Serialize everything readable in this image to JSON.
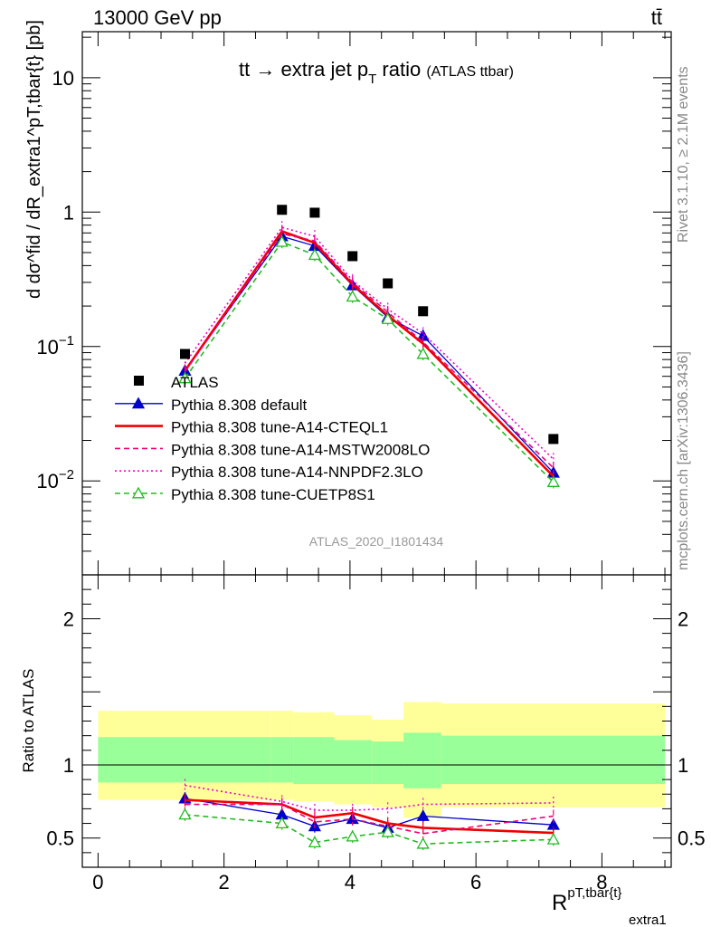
{
  "header": {
    "energy": "13000 GeV pp",
    "process": "tt̄"
  },
  "side_labels": {
    "rivet": "Rivet 3.1.10, ≥ 2.1M events",
    "mcplots": "mcplots.cern.ch [arXiv:1306.3436]"
  },
  "analysis_id": "ATLAS_2020_I1801434",
  "chart_data": [
    {
      "type": "line",
      "panel": "main",
      "title": "tt → extra jet pT ratio",
      "title_suffix": "(ATLAS ttbar)",
      "ylabel": "d dσ^fid / dR_extra1^pT,tbar{t} [pb]",
      "y_scale": "log",
      "ylim": [
        0.002,
        22
      ],
      "xlim": [
        -0.25,
        9.1
      ],
      "y_tick_labels": [
        "10",
        "1",
        "10−1",
        "10−2"
      ],
      "legend_position": "lower-left",
      "x": [
        1.38,
        2.92,
        3.44,
        4.04,
        4.6,
        5.16,
        7.23
      ],
      "series": [
        {
          "name": "ATLAS",
          "style": "data",
          "color": "#000000",
          "values": [
            0.088,
            1.04,
            0.99,
            0.47,
            0.295,
            0.183,
            0.0205
          ]
        },
        {
          "name": "Pythia 8.308 default",
          "style": "solid-thin-filled-triangle",
          "color": "#0000cc",
          "values": [
            0.066,
            0.66,
            0.56,
            0.285,
            0.165,
            0.12,
            0.0115
          ]
        },
        {
          "name": "Pythia 8.308 tune-A14-CTEQL1",
          "style": "solid-thick",
          "color": "#ee0000",
          "values": [
            0.066,
            0.72,
            0.59,
            0.29,
            0.17,
            0.105,
            0.0108
          ]
        },
        {
          "name": "Pythia 8.308 tune-A14-MSTW2008LO",
          "style": "dashed",
          "color": "#ee0077",
          "values": [
            0.065,
            0.69,
            0.61,
            0.3,
            0.18,
            0.108,
            0.0125
          ]
        },
        {
          "name": "Pythia 8.308 tune-A14-NNPDF2.3LO",
          "style": "dotted",
          "color": "#ee00cc",
          "values": [
            0.075,
            0.77,
            0.66,
            0.31,
            0.19,
            0.125,
            0.0145
          ]
        },
        {
          "name": "Pythia 8.308 tune-CUETP8S1",
          "style": "dashed-open-triangle",
          "color": "#22bb22",
          "values": [
            0.058,
            0.6,
            0.48,
            0.235,
            0.16,
            0.088,
            0.0098
          ]
        }
      ]
    },
    {
      "type": "line",
      "panel": "ratio",
      "ylabel": "Ratio to ATLAS",
      "y_scale": "linear",
      "ylim": [
        0.3,
        2.3
      ],
      "xlim": [
        -0.25,
        9.1
      ],
      "y_tick_labels": [
        "2",
        "1",
        "0.5"
      ],
      "x_tick_labels": [
        "0",
        "2",
        "4",
        "6",
        "8"
      ],
      "xlabel": "R^pT,tbar{t}_extra1",
      "bands": {
        "bin_edges": [
          0.0,
          2.75,
          3.1,
          3.75,
          4.35,
          4.85,
          5.45,
          9.0
        ],
        "green": [
          [
            0.88,
            1.19
          ],
          [
            0.88,
            1.19
          ],
          [
            0.87,
            1.19
          ],
          [
            0.87,
            1.17
          ],
          [
            0.87,
            1.16
          ],
          [
            0.84,
            1.22
          ],
          [
            0.87,
            1.2
          ]
        ],
        "yellow": [
          [
            0.76,
            1.37
          ],
          [
            0.76,
            1.37
          ],
          [
            0.75,
            1.36
          ],
          [
            0.73,
            1.34
          ],
          [
            0.71,
            1.31
          ],
          [
            0.64,
            1.43
          ],
          [
            0.71,
            1.42
          ]
        ]
      },
      "x": [
        1.38,
        2.92,
        3.44,
        4.04,
        4.6,
        5.16,
        7.23
      ],
      "series": [
        {
          "name": "Pythia 8.308 default",
          "style": "solid-thin-filled-triangle",
          "color": "#0000cc",
          "values": [
            0.77,
            0.66,
            0.58,
            0.63,
            0.57,
            0.65,
            0.59
          ]
        },
        {
          "name": "Pythia 8.308 tune-A14-CTEQL1",
          "style": "solid-thick",
          "color": "#ee0000",
          "values": [
            0.76,
            0.73,
            0.64,
            0.67,
            0.6,
            0.57,
            0.535
          ]
        },
        {
          "name": "Pythia 8.308 tune-A14-MSTW2008LO",
          "style": "dashed",
          "color": "#ee0077",
          "values": [
            0.73,
            0.73,
            0.61,
            0.63,
            0.58,
            0.53,
            0.65
          ]
        },
        {
          "name": "Pythia 8.308 tune-A14-NNPDF2.3LO",
          "style": "dotted",
          "color": "#ee00cc",
          "values": [
            0.86,
            0.75,
            0.69,
            0.69,
            0.7,
            0.73,
            0.74
          ]
        },
        {
          "name": "Pythia 8.308 tune-CUETP8S1",
          "style": "dashed-open-triangle",
          "color": "#22bb22",
          "values": [
            0.66,
            0.6,
            0.47,
            0.51,
            0.54,
            0.46,
            0.49
          ]
        }
      ]
    }
  ]
}
